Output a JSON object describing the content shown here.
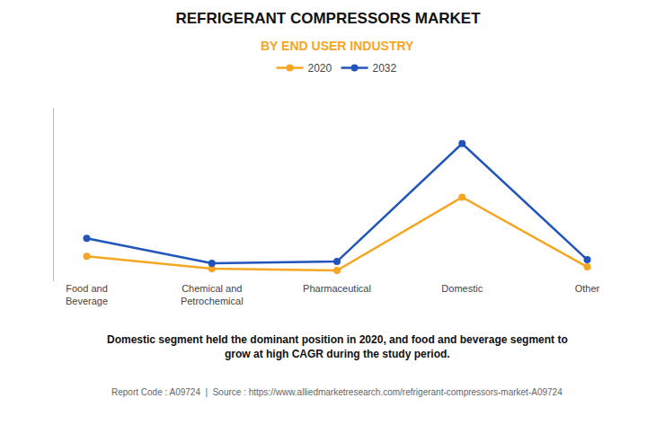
{
  "chart_data": {
    "type": "line",
    "title": "REFRIGERANT COMPRESSORS MARKET",
    "subtitle": "BY END USER INDUSTRY",
    "categories": [
      "Food and\nBeverage",
      "Chemical and\nPetrochemical",
      "Pharmaceutical",
      "Domestic",
      "Other"
    ],
    "series": [
      {
        "name": "2020",
        "color": "#F5A623",
        "values": [
          2.2,
          1.5,
          1.4,
          5.5,
          1.6
        ]
      },
      {
        "name": "2032",
        "color": "#2255BB",
        "values": [
          3.2,
          1.8,
          1.9,
          8.5,
          2.0
        ]
      }
    ],
    "ylim": [
      0.8,
      10.5
    ],
    "yticks": [],
    "tick_labels": "x",
    "grid": false,
    "legend": "top",
    "marker": "circle",
    "annotations": [
      "Domestic segment held the dominant position in 2020, and food and beverage segment to\ngrow at high CAGR during the study period.",
      "Report Code : A09724  |  Source : https://www.alliedmarketresearch.com/refrigerant-compressors-market-A09724"
    ]
  }
}
